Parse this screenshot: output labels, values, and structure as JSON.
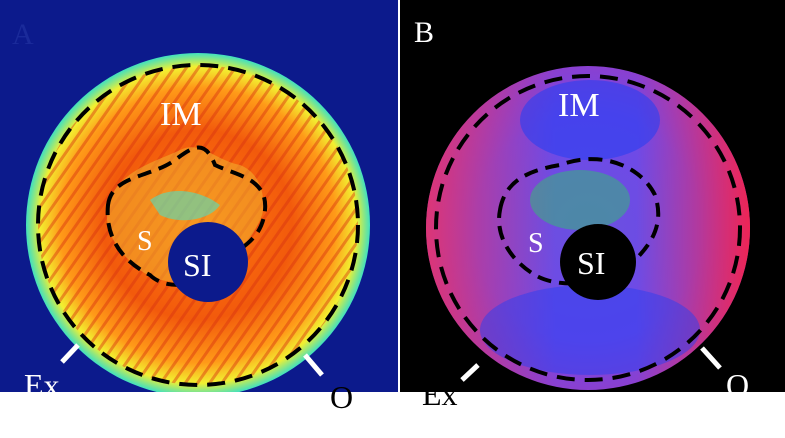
{
  "panels": [
    {
      "label": "A",
      "annotations": {
        "im": "IM",
        "s": "S",
        "si": "SI",
        "ex": "Ex",
        "o": "O"
      }
    },
    {
      "label": "B",
      "annotations": {
        "im": "IM",
        "s": "S",
        "si": "SI",
        "ex": "Ex",
        "o": "O"
      }
    }
  ]
}
